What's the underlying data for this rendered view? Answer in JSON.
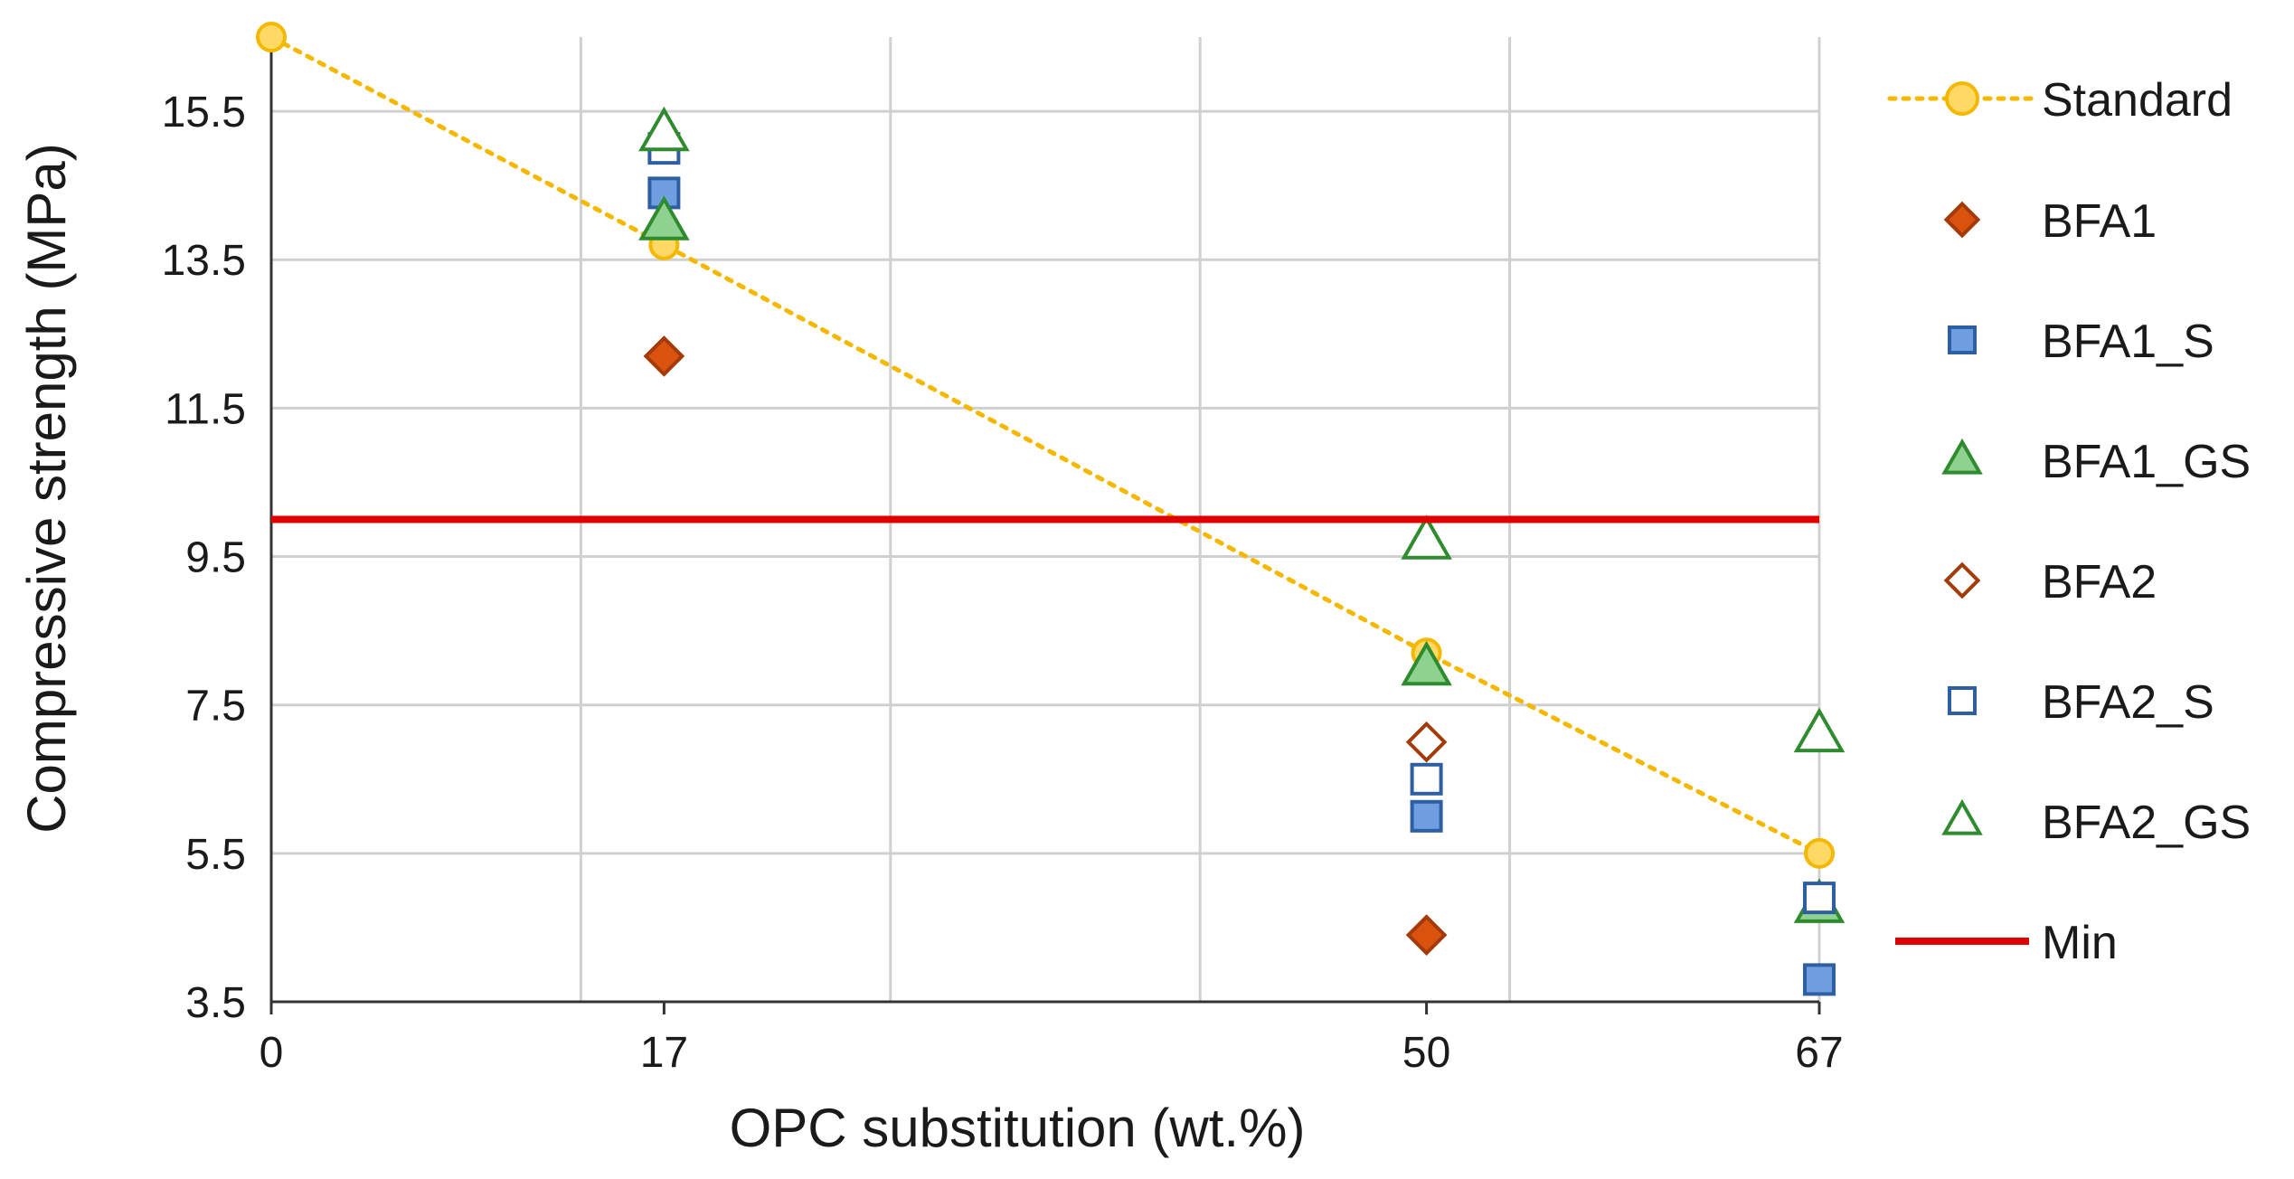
{
  "chart_data": {
    "type": "scatter",
    "title": "",
    "xlabel": "OPC substitution (wt.%)",
    "ylabel": "Compressive strength (MPa)",
    "xlim": [
      0,
      67
    ],
    "ylim": [
      3.5,
      16.5
    ],
    "x_ticks": [
      0,
      17,
      50,
      67
    ],
    "y_ticks": [
      3.5,
      5.5,
      7.5,
      9.5,
      11.5,
      13.5,
      15.5
    ],
    "y_tick_labels": [
      "3.5",
      "5.5",
      "7.5",
      "9.5",
      "11.5",
      "13.5",
      "15.5"
    ],
    "x_gridlines": [
      0,
      13.4,
      26.8,
      40.2,
      53.6,
      67
    ],
    "grid": true,
    "legend_position": "right",
    "series": [
      {
        "name": "Standard",
        "marker": "circle",
        "filled": true,
        "line": "dotted",
        "color": "#F5B800",
        "fill": "#FFD966",
        "x": [
          0,
          17,
          50,
          67
        ],
        "y": [
          16.5,
          13.7,
          8.2,
          5.5
        ]
      },
      {
        "name": "BFA1",
        "marker": "diamond",
        "filled": true,
        "color": "#A33A08",
        "fill": "#D9530F",
        "x": [
          17,
          50
        ],
        "y": [
          12.2,
          4.4
        ]
      },
      {
        "name": "BFA1_S",
        "marker": "square",
        "filled": true,
        "color": "#2E5FA3",
        "fill": "#6F9FE0",
        "x": [
          17,
          50,
          67
        ],
        "y": [
          14.4,
          6.0,
          3.8
        ]
      },
      {
        "name": "BFA1_GS",
        "marker": "triangle",
        "filled": true,
        "color": "#2E8B2E",
        "fill": "#8FD18F",
        "x": [
          17,
          50,
          67
        ],
        "y": [
          14.0,
          8.0,
          4.8
        ]
      },
      {
        "name": "BFA2",
        "marker": "diamond",
        "filled": false,
        "color": "#A33A08",
        "fill": "#ffffff",
        "x": [
          50
        ],
        "y": [
          7.0
        ]
      },
      {
        "name": "BFA2_S",
        "marker": "square",
        "filled": false,
        "color": "#2E5FA3",
        "fill": "#ffffff",
        "x": [
          17,
          50,
          67
        ],
        "y": [
          15.0,
          6.5,
          4.9
        ]
      },
      {
        "name": "BFA2_GS",
        "marker": "triangle",
        "filled": false,
        "color": "#2E8B2E",
        "fill": "#ffffff",
        "x": [
          17,
          50,
          67
        ],
        "y": [
          15.2,
          9.7,
          7.1
        ]
      },
      {
        "name": "Min",
        "marker": "none",
        "line": "solid",
        "color": "#E00000",
        "x": [
          0,
          67
        ],
        "y": [
          10.0,
          10.0
        ]
      }
    ]
  }
}
